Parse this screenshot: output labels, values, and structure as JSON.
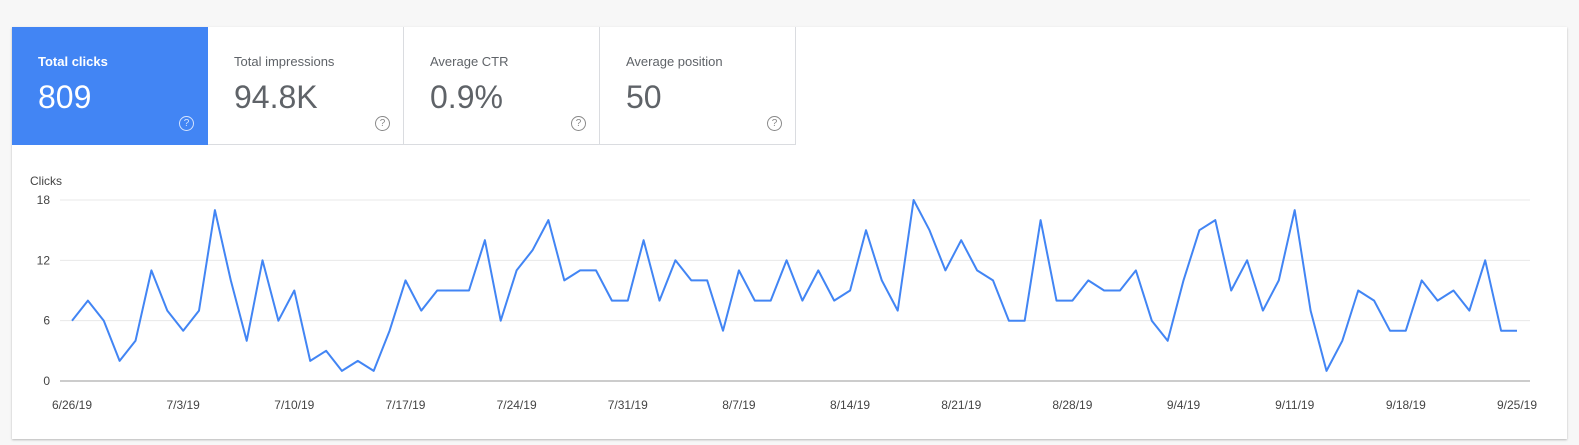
{
  "metrics": [
    {
      "label": "Total clicks",
      "value": "809",
      "active": true
    },
    {
      "label": "Total impressions",
      "value": "94.8K",
      "active": false
    },
    {
      "label": "Average CTR",
      "value": "0.9%",
      "active": false
    },
    {
      "label": "Average position",
      "value": "50",
      "active": false
    }
  ],
  "help_glyph": "?",
  "colors": {
    "accent": "#4285f4",
    "line": "#4285f4",
    "grid": "#e8e8e8"
  },
  "chart_data": {
    "type": "line",
    "ylabel": "Clicks",
    "ylim": [
      0,
      18
    ],
    "yticks": [
      "0",
      "6",
      "12",
      "18"
    ],
    "xlabels": [
      "6/26/19",
      "7/3/19",
      "7/10/19",
      "7/17/19",
      "7/24/19",
      "7/31/19",
      "8/7/19",
      "8/14/19",
      "8/21/19",
      "8/28/19",
      "9/4/19",
      "9/11/19",
      "9/18/19",
      "9/25/19"
    ],
    "series": [
      {
        "values": [
          6,
          8,
          6,
          2,
          4,
          11,
          7,
          5,
          7,
          17,
          10,
          4,
          12,
          6,
          9,
          2,
          3,
          1,
          2,
          1,
          5,
          10,
          7,
          9,
          9,
          9,
          14,
          6,
          11,
          13,
          16,
          10,
          11,
          11,
          8,
          8,
          14,
          8,
          12,
          10,
          10,
          5,
          11,
          8,
          8,
          12,
          8,
          11,
          8,
          9,
          15,
          10,
          7,
          18,
          15,
          11,
          14,
          11,
          10,
          6,
          6,
          16,
          8,
          8,
          10,
          9,
          9,
          11,
          6,
          4,
          10,
          15,
          16,
          9,
          12,
          7,
          10,
          17,
          7,
          1,
          4,
          9,
          8,
          5,
          5,
          10,
          8,
          9,
          7,
          12,
          5,
          5
        ]
      }
    ],
    "grid": true
  }
}
